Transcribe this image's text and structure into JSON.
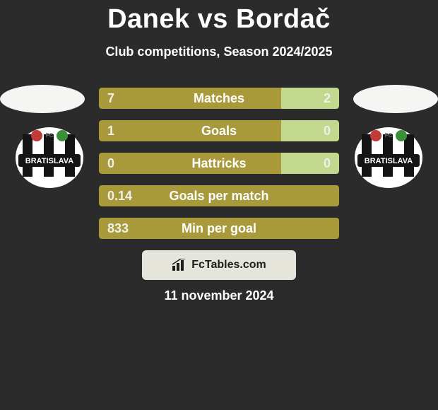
{
  "title": "Danek vs Bordač",
  "subtitle": "Club competitions, Season 2024/2025",
  "footer_brand": "FcTables.com",
  "footer_date": "11 november 2024",
  "colors": {
    "background": "#2b2b2b",
    "left_bar": "#a89a3b",
    "right_bar": "#c2d88f",
    "footer_badge": "#e5e5dc",
    "text": "#ffffff",
    "ellipse": "#f5f5f3"
  },
  "club_badge": {
    "shape": "circle",
    "outer_fill": "#ffffff",
    "stripe_fill": "#141414",
    "banner_fill": "#141414",
    "banner_text": "BRATISLAVA",
    "banner_text_color": "#ffffff",
    "accent_left": "#c23a3a",
    "accent_right": "#3a8f3a",
    "fc_text": "FC"
  },
  "bars": [
    {
      "label": "Matches",
      "left": "7",
      "right": "2",
      "left_pct": 76,
      "right_pct": 24
    },
    {
      "label": "Goals",
      "left": "1",
      "right": "0",
      "left_pct": 76,
      "right_pct": 24
    },
    {
      "label": "Hattricks",
      "left": "0",
      "right": "0",
      "left_pct": 76,
      "right_pct": 24
    },
    {
      "label": "Goals per match",
      "left": "0.14",
      "right": "",
      "left_pct": 100,
      "right_pct": 0
    },
    {
      "label": "Min per goal",
      "left": "833",
      "right": "",
      "left_pct": 100,
      "right_pct": 0
    }
  ]
}
